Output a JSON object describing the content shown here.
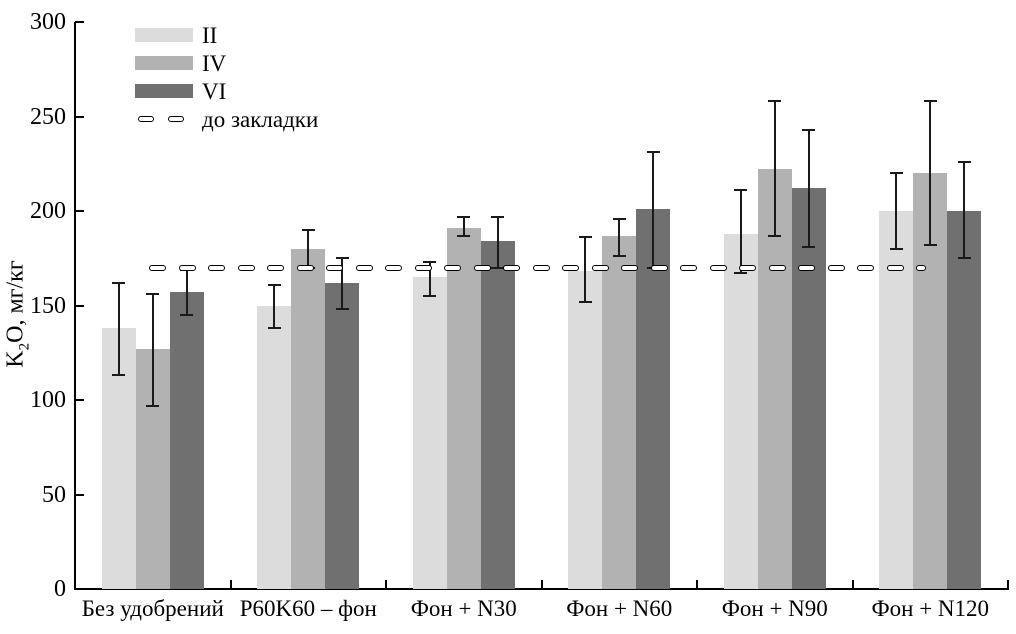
{
  "ylabel": {
    "k": "K",
    "sub": "2",
    "rest": "O, мг/кг"
  },
  "legend": {
    "items": [
      {
        "label": "II",
        "type": "swatch",
        "color": "#dcdcdc"
      },
      {
        "label": "IV",
        "type": "swatch",
        "color": "#b2b2b2"
      },
      {
        "label": "VI",
        "type": "swatch",
        "color": "#707070"
      },
      {
        "label": "до закладки",
        "type": "dash"
      }
    ]
  },
  "chart_data": {
    "type": "bar",
    "title": "",
    "xlabel": "",
    "ylabel": "K2O, мг/кг",
    "ylim": [
      0,
      300
    ],
    "yticks": [
      0,
      50,
      100,
      150,
      200,
      250,
      300
    ],
    "grid": false,
    "legend_position": "upper-left",
    "categories": [
      "Без удобрений",
      "P60K60 – фон",
      "Фон + N30",
      "Фон + N60",
      "Фон + N90",
      "Фон + N120"
    ],
    "series": [
      {
        "name": "II",
        "color": "#dcdcdc",
        "values": [
          138,
          150,
          165,
          168,
          188,
          200
        ],
        "err_low": [
          113,
          138,
          155,
          152,
          167,
          180
        ],
        "err_high": [
          162,
          161,
          173,
          186,
          211,
          220
        ]
      },
      {
        "name": "IV",
        "color": "#b2b2b2",
        "values": [
          127,
          180,
          191,
          187,
          222,
          220
        ],
        "err_low": [
          97,
          170,
          187,
          176,
          187,
          182
        ],
        "err_high": [
          156,
          190,
          197,
          196,
          258,
          258
        ]
      },
      {
        "name": "VI",
        "color": "#707070",
        "values": [
          157,
          162,
          184,
          201,
          212,
          200
        ],
        "err_low": [
          145,
          148,
          170,
          170,
          181,
          175
        ],
        "err_high": [
          169,
          175,
          197,
          231,
          243,
          226
        ]
      }
    ],
    "baseline": {
      "label": "до закладки",
      "value": 170,
      "style": "dashed"
    }
  }
}
